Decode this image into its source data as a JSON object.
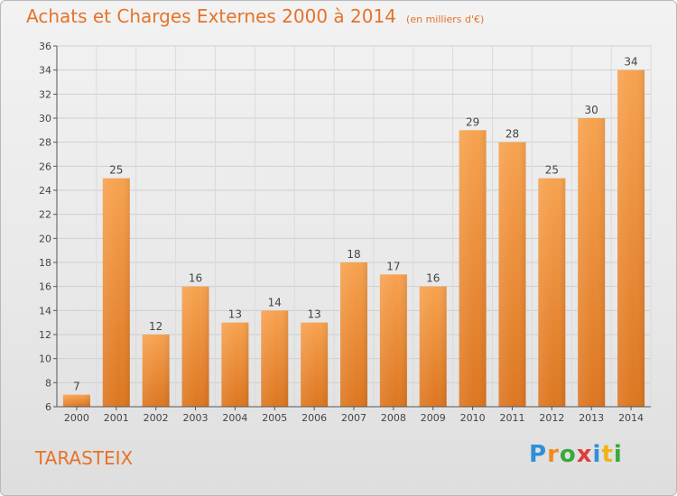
{
  "title": "Achats et Charges Externes 2000 à 2014",
  "unit": "(en milliers d'€)",
  "commune": "TARASTEIX",
  "logo": {
    "letters": [
      "P",
      "r",
      "o",
      "x",
      "i",
      "t",
      "i"
    ],
    "colors": [
      "#2f8fd8",
      "#f08a1c",
      "#3aa83a",
      "#e23b3b",
      "#2f8fd8",
      "#f0b21c",
      "#3aa83a"
    ]
  },
  "chart_data": {
    "type": "bar",
    "categories": [
      "2000",
      "2001",
      "2002",
      "2003",
      "2004",
      "2005",
      "2006",
      "2007",
      "2008",
      "2009",
      "2010",
      "2011",
      "2012",
      "2013",
      "2014"
    ],
    "values": [
      7,
      25,
      12,
      16,
      13,
      14,
      13,
      18,
      17,
      16,
      29,
      28,
      25,
      30,
      34
    ],
    "ylim": [
      6,
      36
    ],
    "yticks": [
      6,
      8,
      10,
      12,
      14,
      16,
      18,
      20,
      22,
      24,
      26,
      28,
      30,
      32,
      34,
      36
    ],
    "grid": true,
    "bar_color": "#f0902f"
  }
}
